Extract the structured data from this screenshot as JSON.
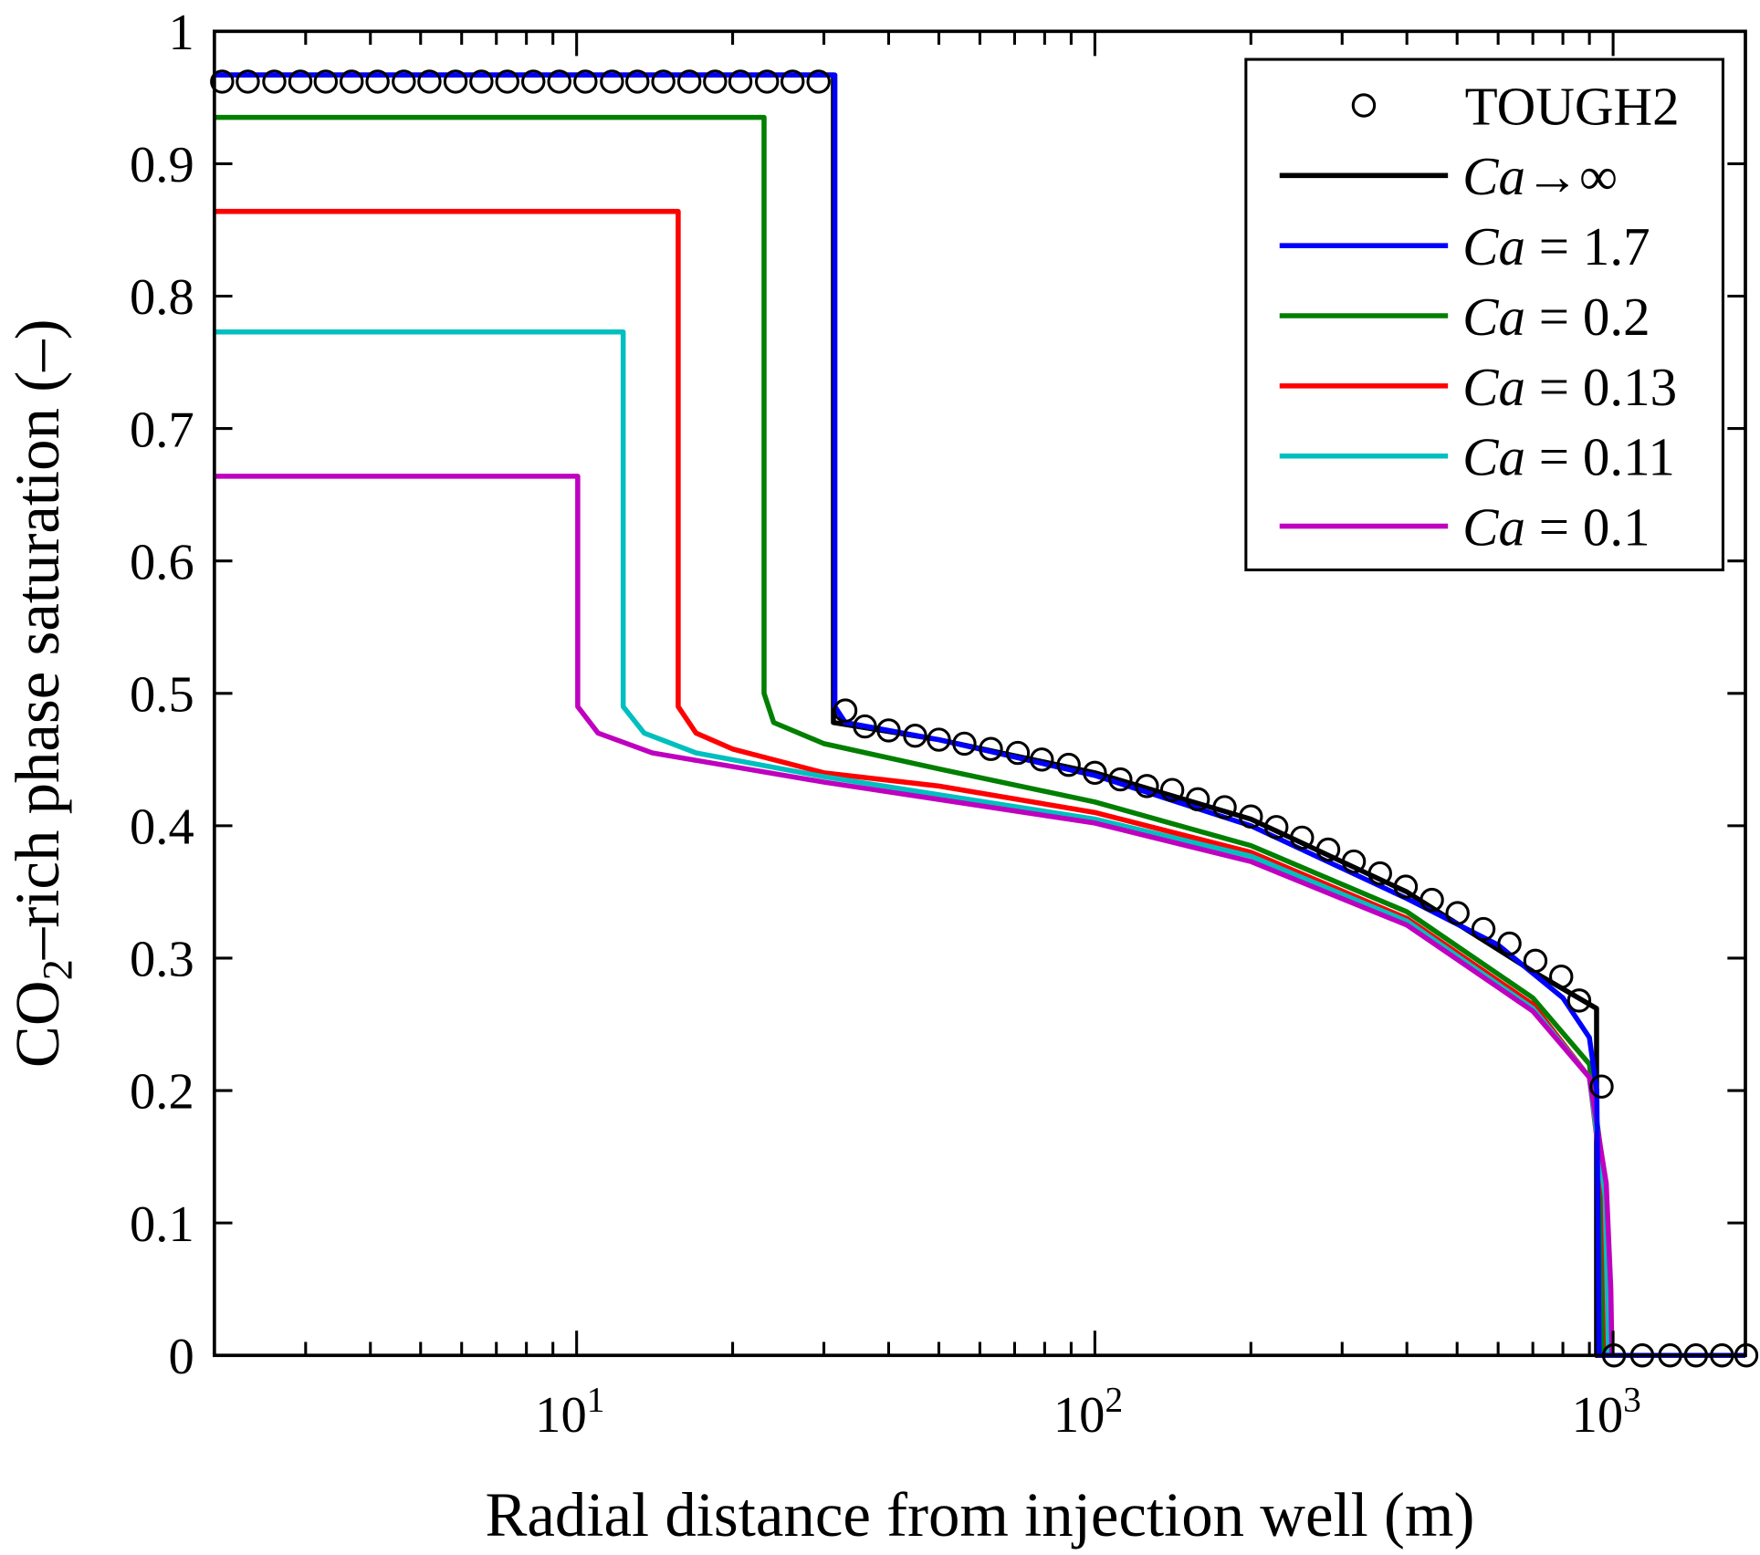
{
  "chart_data": {
    "type": "line",
    "title": "",
    "xlabel": "Radial distance from injection well (m)",
    "ylabel": {
      "main": "CO",
      "sub": "2",
      "rest": "–rich phase saturation (–)"
    },
    "xscale": "log",
    "xlim": [
      2,
      1800
    ],
    "ylim": [
      0,
      1
    ],
    "grid": false,
    "legend_position": "top-right",
    "x_ticks": [
      {
        "value": 10,
        "base": "10",
        "exp": "1"
      },
      {
        "value": 100,
        "base": "10",
        "exp": "2"
      },
      {
        "value": 1000,
        "base": "10",
        "exp": "3"
      }
    ],
    "y_ticks": [
      {
        "value": 0,
        "label": "0"
      },
      {
        "value": 0.1,
        "label": "0.1"
      },
      {
        "value": 0.2,
        "label": "0.2"
      },
      {
        "value": 0.3,
        "label": "0.3"
      },
      {
        "value": 0.4,
        "label": "0.4"
      },
      {
        "value": 0.5,
        "label": "0.5"
      },
      {
        "value": 0.6,
        "label": "0.6"
      },
      {
        "value": 0.7,
        "label": "0.7"
      },
      {
        "value": 0.8,
        "label": "0.8"
      },
      {
        "value": 0.9,
        "label": "0.9"
      },
      {
        "value": 1,
        "label": "1"
      }
    ],
    "series": [
      {
        "name": "TOUGH2",
        "italic": "",
        "rest": "TOUGH2",
        "kind": "markers",
        "marker": "open-circle",
        "color": "#000000",
        "x": [
          2.07,
          2.32,
          2.61,
          2.93,
          3.28,
          3.68,
          4.13,
          4.64,
          5.2,
          5.84,
          6.55,
          7.35,
          8.25,
          9.26,
          10.4,
          11.7,
          13.1,
          14.7,
          16.5,
          18.5,
          20.7,
          23.3,
          26.1,
          29.3,
          33,
          36,
          40,
          45,
          50,
          56,
          63,
          71,
          79,
          89,
          100,
          112,
          126,
          141,
          158,
          178,
          200,
          224,
          251,
          282,
          316,
          355,
          398,
          447,
          501,
          562,
          631,
          708,
          794,
          860,
          950,
          1004,
          1138,
          1288,
          1445,
          1622,
          1807
        ],
        "y": [
          0.962,
          0.962,
          0.962,
          0.962,
          0.962,
          0.962,
          0.962,
          0.962,
          0.962,
          0.962,
          0.962,
          0.962,
          0.962,
          0.962,
          0.962,
          0.962,
          0.962,
          0.962,
          0.962,
          0.962,
          0.962,
          0.962,
          0.962,
          0.962,
          0.487,
          0.475,
          0.472,
          0.468,
          0.465,
          0.462,
          0.458,
          0.455,
          0.45,
          0.446,
          0.44,
          0.435,
          0.43,
          0.427,
          0.42,
          0.414,
          0.407,
          0.399,
          0.391,
          0.382,
          0.373,
          0.364,
          0.354,
          0.344,
          0.334,
          0.322,
          0.311,
          0.298,
          0.286,
          0.268,
          0.203,
          0,
          0,
          0,
          0,
          0,
          0
        ]
      },
      {
        "name": "Ca→∞",
        "italic": "Ca",
        "rest": "→∞",
        "kind": "line",
        "color": "#000000",
        "x": [
          2,
          31.3,
          31.3,
          50,
          100,
          200,
          400,
          700,
          929,
          929,
          1800
        ],
        "y": [
          0.967,
          0.967,
          0.478,
          0.465,
          0.44,
          0.405,
          0.35,
          0.29,
          0.262,
          0,
          0
        ]
      },
      {
        "name": "Ca = 1.7",
        "italic": "Ca",
        "rest": " = 1.7",
        "kind": "line",
        "color": "#0000ff",
        "x": [
          2,
          31.5,
          31.5,
          33,
          50,
          100,
          200,
          400,
          600,
          800,
          900,
          930,
          935,
          940,
          1800
        ],
        "y": [
          0.967,
          0.967,
          0.49,
          0.478,
          0.465,
          0.438,
          0.4,
          0.345,
          0.31,
          0.27,
          0.24,
          0.2,
          0.1,
          0,
          0
        ]
      },
      {
        "name": "Ca = 0.2",
        "italic": "Ca",
        "rest": " = 0.2",
        "kind": "line",
        "color": "#007f00",
        "x": [
          2,
          23,
          23,
          24,
          30,
          50,
          100,
          200,
          400,
          700,
          900,
          950,
          960,
          1800
        ],
        "y": [
          0.935,
          0.935,
          0.5,
          0.478,
          0.462,
          0.443,
          0.418,
          0.385,
          0.335,
          0.27,
          0.22,
          0.15,
          0,
          0
        ]
      },
      {
        "name": "Ca = 0.13",
        "italic": "Ca",
        "rest": " = 0.13",
        "kind": "line",
        "color": "#ff0000",
        "x": [
          2,
          15.7,
          15.7,
          17,
          20,
          30,
          50,
          100,
          200,
          400,
          700,
          900,
          960,
          975,
          1800
        ],
        "y": [
          0.864,
          0.864,
          0.49,
          0.47,
          0.458,
          0.44,
          0.43,
          0.41,
          0.38,
          0.33,
          0.265,
          0.21,
          0.12,
          0,
          0
        ]
      },
      {
        "name": "Ca = 0.11",
        "italic": "Ca",
        "rest": " = 0.11",
        "kind": "line",
        "color": "#00bfbf",
        "x": [
          2,
          12.3,
          12.3,
          13.5,
          17,
          30,
          100,
          200,
          400,
          700,
          900,
          965,
          980,
          1800
        ],
        "y": [
          0.773,
          0.773,
          0.49,
          0.47,
          0.455,
          0.437,
          0.405,
          0.377,
          0.328,
          0.262,
          0.21,
          0.12,
          0,
          0
        ]
      },
      {
        "name": "Ca = 0.1",
        "italic": "Ca",
        "rest": " = 0.1",
        "kind": "line",
        "color": "#bf00bf",
        "x": [
          2,
          10.05,
          10.05,
          11,
          14,
          30,
          100,
          200,
          400,
          700,
          900,
          970,
          990,
          995,
          1800
        ],
        "y": [
          0.664,
          0.664,
          0.49,
          0.47,
          0.455,
          0.433,
          0.402,
          0.373,
          0.325,
          0.26,
          0.21,
          0.13,
          0.05,
          0,
          0
        ]
      }
    ]
  }
}
